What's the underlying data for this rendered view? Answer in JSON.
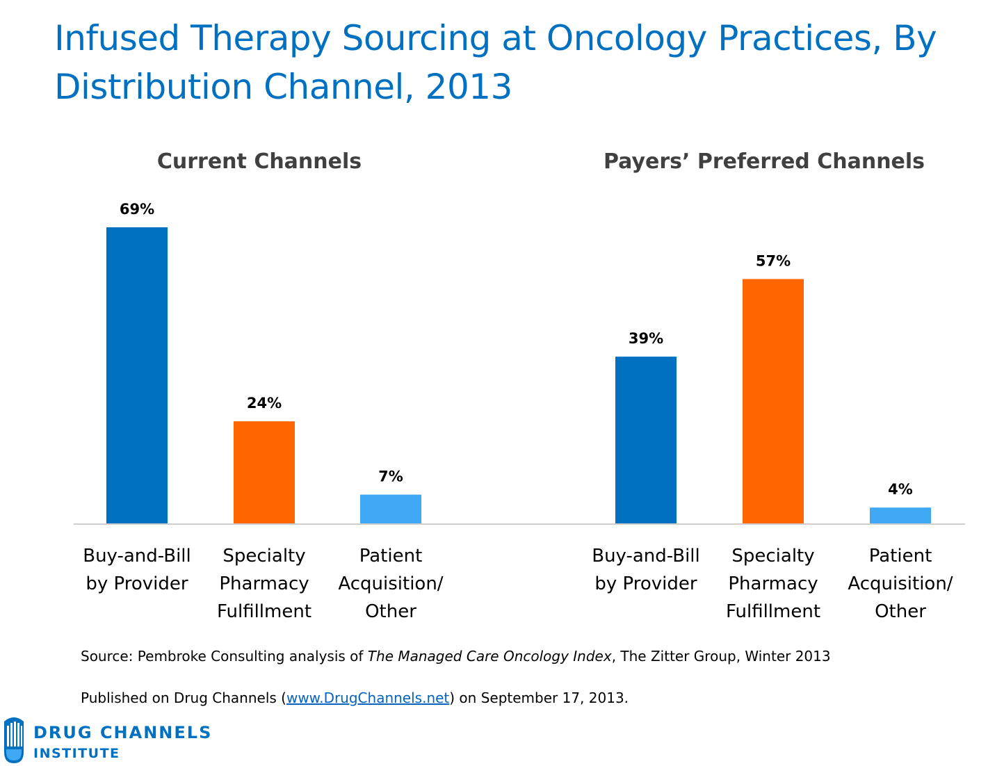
{
  "title": "Infused Therapy Sourcing at Oncology Practices, By Distribution Channel, 2013",
  "chart_data": [
    {
      "type": "bar",
      "title": "Current Channels",
      "categories": [
        [
          "Buy-and-Bill",
          "by Provider"
        ],
        [
          "Specialty",
          "Pharmacy",
          "Fulfillment"
        ],
        [
          "Patient",
          "Acquisition/",
          "Other"
        ]
      ],
      "values": [
        69,
        24,
        7
      ],
      "value_labels": [
        "69%",
        "24%",
        "7%"
      ],
      "colors": [
        "#0070c0",
        "#ff6600",
        "#3fa9f5"
      ],
      "ylim": [
        0,
        69
      ]
    },
    {
      "type": "bar",
      "title": "Payers’ Preferred Channels",
      "categories": [
        [
          "Buy-and-Bill",
          "by Provider"
        ],
        [
          "Specialty",
          "Pharmacy",
          "Fulfillment"
        ],
        [
          "Patient",
          "Acquisition/",
          "Other"
        ]
      ],
      "values": [
        39,
        57,
        4
      ],
      "value_labels": [
        "39%",
        "57%",
        "4%"
      ],
      "colors": [
        "#0070c0",
        "#ff6600",
        "#3fa9f5"
      ],
      "ylim": [
        0,
        69
      ]
    }
  ],
  "footer": {
    "source_prefix": "Source: Pembroke Consulting analysis of ",
    "source_italic": "The Managed Care Oncology Index",
    "source_suffix": ", The Zitter Group, Winter 2013",
    "published_prefix": "Published on Drug Channels (",
    "published_link": "www.DrugChannels.net",
    "published_suffix": ") on September 17, 2013."
  },
  "logo": {
    "name": "DRUG CHANNELS",
    "sub": "INSTITUTE",
    "color": "#0070c0"
  }
}
